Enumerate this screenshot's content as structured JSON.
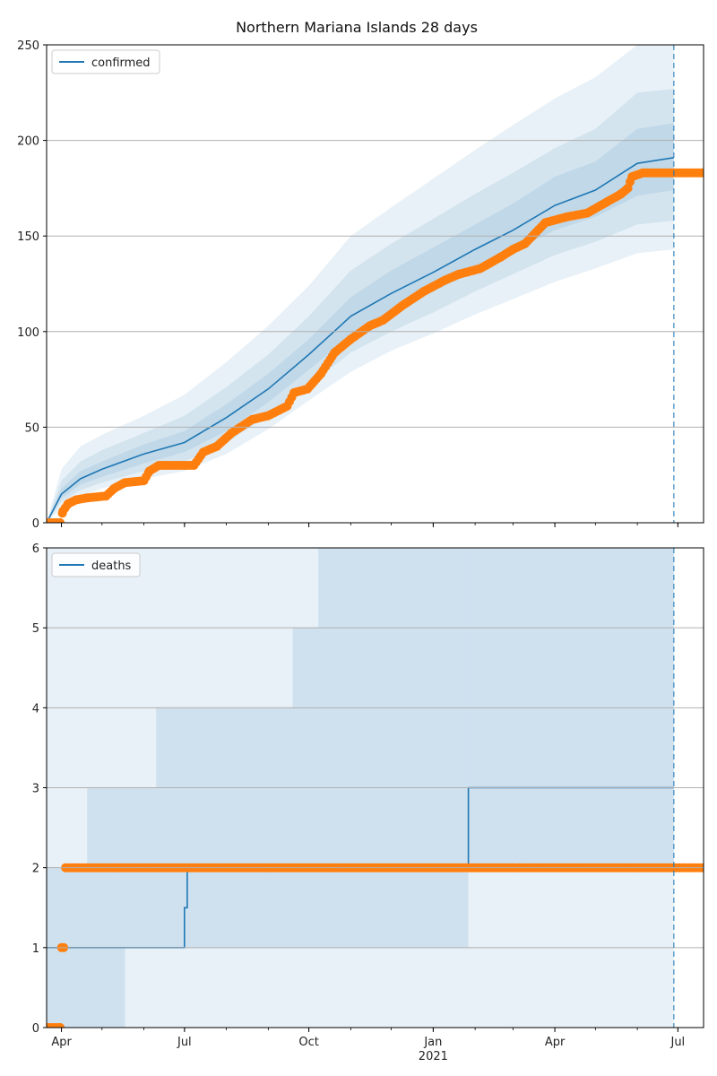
{
  "title": "Northern Mariana Islands 28 days",
  "colors": {
    "model": "#1f77b4",
    "observed": "#ff7f0e",
    "grid": "#b0b0b0",
    "band": "#1f77b4"
  },
  "chart_data": [
    {
      "type": "line",
      "legend": "confirmed",
      "legend_position": "upper-left",
      "x_type": "date",
      "x_range": [
        "2020-03-21",
        "2021-07-20"
      ],
      "ylim": [
        0,
        250
      ],
      "yticks": [
        0,
        50,
        100,
        150,
        200,
        250
      ],
      "xticks": [
        {
          "date": "2020-04-01",
          "label": "Apr"
        },
        {
          "date": "2020-07-01",
          "label": "Jul"
        },
        {
          "date": "2020-10-01",
          "label": "Oct"
        },
        {
          "date": "2021-01-01",
          "label": "Jan"
        },
        {
          "date": "2021-04-01",
          "label": "Apr"
        },
        {
          "date": "2021-07-01",
          "label": "Jul"
        }
      ],
      "x_year_label": "2021",
      "grid": "horizontal",
      "forecast_date": "2021-06-28",
      "model": {
        "x": [
          "2020-03-21",
          "2020-04-01",
          "2020-04-15",
          "2020-05-01",
          "2020-06-01",
          "2020-07-01",
          "2020-08-01",
          "2020-09-01",
          "2020-10-01",
          "2020-11-01",
          "2020-12-01",
          "2021-01-01",
          "2021-02-01",
          "2021-03-01",
          "2021-04-01",
          "2021-05-01",
          "2021-06-01",
          "2021-06-28"
        ],
        "y": [
          0,
          15,
          23,
          28,
          36,
          42,
          55,
          70,
          88,
          108,
          120,
          131,
          143,
          153,
          166,
          174,
          188,
          191
        ],
        "bands": [
          {
            "level": "50%",
            "lo": [
              0,
              13,
              20,
              24,
              31,
              37,
              48,
              63,
              80,
              98,
              110,
              121,
              132,
              142,
              153,
              160,
              171,
              174
            ],
            "hi": [
              0,
              18,
              27,
              32,
              41,
              48,
              62,
              78,
              96,
              118,
              132,
              144,
              156,
              167,
              181,
              189,
              206,
              209
            ]
          },
          {
            "level": "80%",
            "lo": [
              0,
              11,
              17,
              21,
              27,
              32,
              42,
              56,
              72,
              89,
              100,
              110,
              121,
              130,
              140,
              147,
              156,
              158
            ],
            "hi": [
              0,
              22,
              32,
              38,
              47,
              56,
              71,
              88,
              108,
              132,
              146,
              159,
              172,
              183,
              196,
              206,
              225,
              227
            ]
          },
          {
            "level": "95%",
            "lo": [
              0,
              8,
              14,
              18,
              23,
              27,
              36,
              49,
              64,
              79,
              90,
              99,
              109,
              117,
              126,
              133,
              141,
              143
            ],
            "hi": [
              0,
              28,
              40,
              46,
              56,
              67,
              84,
              103,
              124,
              150,
              165,
              180,
              195,
              208,
              222,
              233,
              250,
              252
            ]
          }
        ]
      },
      "observed": {
        "x": [
          "2020-03-21",
          "2020-03-31",
          "2020-04-02",
          "2020-04-06",
          "2020-04-12",
          "2020-04-20",
          "2020-05-04",
          "2020-05-10",
          "2020-05-18",
          "2020-06-01",
          "2020-06-05",
          "2020-06-12",
          "2020-07-01",
          "2020-07-08",
          "2020-07-15",
          "2020-07-25",
          "2020-08-05",
          "2020-08-20",
          "2020-09-01",
          "2020-09-15",
          "2020-09-20",
          "2020-09-30",
          "2020-10-10",
          "2020-10-20",
          "2020-11-01",
          "2020-11-15",
          "2020-11-25",
          "2020-12-10",
          "2020-12-25",
          "2021-01-10",
          "2021-01-20",
          "2021-02-05",
          "2021-02-20",
          "2021-03-01",
          "2021-03-10",
          "2021-03-25",
          "2021-04-10",
          "2021-04-25",
          "2021-05-10",
          "2021-05-20",
          "2021-05-25",
          "2021-05-28",
          "2021-06-05",
          "2021-06-28",
          "2021-07-20"
        ],
        "y": [
          0,
          0,
          6,
          10,
          12,
          13,
          14,
          18,
          21,
          22,
          27,
          30,
          30,
          30,
          37,
          40,
          47,
          54,
          56,
          61,
          68,
          70,
          78,
          89,
          96,
          103,
          106,
          114,
          121,
          127,
          130,
          133,
          139,
          143,
          146,
          157,
          160,
          162,
          168,
          172,
          175,
          181,
          183,
          183,
          183
        ]
      }
    },
    {
      "type": "line",
      "legend": "deaths",
      "legend_position": "upper-left",
      "x_type": "date",
      "x_range": [
        "2020-03-21",
        "2021-07-20"
      ],
      "ylim": [
        0,
        6
      ],
      "yticks": [
        0,
        1,
        2,
        3,
        4,
        5,
        6
      ],
      "xticks": [
        {
          "date": "2020-04-01",
          "label": "Apr"
        },
        {
          "date": "2020-07-01",
          "label": "Jul"
        },
        {
          "date": "2020-10-01",
          "label": "Oct"
        },
        {
          "date": "2021-01-01",
          "label": "Jan"
        },
        {
          "date": "2021-04-01",
          "label": "Apr"
        },
        {
          "date": "2021-07-01",
          "label": "Jul"
        }
      ],
      "x_year_label": "2021",
      "grid": "horizontal",
      "forecast_date": "2021-06-28",
      "model": {
        "steps": [
          {
            "from": "2020-03-21",
            "to": "2020-07-01",
            "y": 1
          },
          {
            "from": "2020-07-01",
            "to": "2020-07-03",
            "y": 1.5
          },
          {
            "from": "2020-07-03",
            "to": "2021-01-27",
            "y": 2
          },
          {
            "from": "2021-01-27",
            "to": "2021-06-28",
            "y": 3
          }
        ],
        "band_regions": [
          {
            "from": "2020-03-21",
            "to": "2020-04-20",
            "lo": 0,
            "hi": 2
          },
          {
            "from": "2020-04-20",
            "to": "2020-05-18",
            "lo": 0,
            "hi": 3
          },
          {
            "from": "2020-05-18",
            "to": "2020-06-10",
            "lo": 1,
            "hi": 3
          },
          {
            "from": "2020-06-10",
            "to": "2020-06-13",
            "lo": 1,
            "hi": 4
          },
          {
            "from": "2020-06-13",
            "to": "2020-09-19",
            "lo": 1,
            "hi": 4
          },
          {
            "from": "2020-09-19",
            "to": "2020-10-08",
            "lo": 1,
            "hi": 5
          },
          {
            "from": "2020-10-08",
            "to": "2021-01-27",
            "lo": 1,
            "hi": 6
          },
          {
            "from": "2021-01-27",
            "to": "2021-03-27",
            "lo": 2,
            "hi": 6
          },
          {
            "from": "2021-03-27",
            "to": "2021-06-28",
            "lo": 2,
            "hi": 6
          }
        ]
      },
      "observed": {
        "x": [
          "2020-03-21",
          "2020-03-31",
          "2020-04-01",
          "2020-04-04",
          "2020-06-01",
          "2020-09-01",
          "2020-12-01",
          "2021-03-01",
          "2021-06-01",
          "2021-07-20"
        ],
        "y": [
          0,
          0,
          1,
          2,
          2,
          2,
          2,
          2,
          2,
          2
        ]
      }
    }
  ]
}
